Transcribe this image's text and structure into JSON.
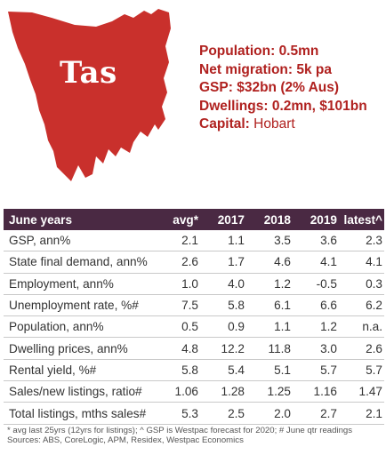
{
  "map": {
    "label": "Tas",
    "fill_color": "#c9302c"
  },
  "facts": [
    {
      "key": "Population:",
      "value": "0.5mn",
      "bold_value": true
    },
    {
      "key": "Net migration:",
      "value": "5k pa",
      "bold_value": true
    },
    {
      "key": "GSP:",
      "value": "$32bn (2% Aus)",
      "bold_value": true
    },
    {
      "key": "Dwellings:",
      "value": "0.2mn, $101bn",
      "bold_value": true
    },
    {
      "key": "Capital:",
      "value": "Hobart",
      "bold_value": false
    }
  ],
  "table": {
    "header_color": "#4a2943",
    "headers": [
      "June years",
      "avg*",
      "2017",
      "2018",
      "2019",
      "latest^"
    ],
    "rows": [
      [
        "GSP, ann%",
        "2.1",
        "1.1",
        "3.5",
        "3.6",
        "2.3"
      ],
      [
        "State final demand, ann%",
        "2.6",
        "1.7",
        "4.6",
        "4.1",
        "4.1"
      ],
      [
        "Employment, ann%",
        "1.0",
        "4.0",
        "1.2",
        "-0.5",
        "0.3"
      ],
      [
        "Unemployment rate, %#",
        "7.5",
        "5.8",
        "6.1",
        "6.6",
        "6.2"
      ],
      [
        "Population, ann%",
        "0.5",
        "0.9",
        "1.1",
        "1.2",
        "n.a."
      ],
      [
        "Dwelling prices, ann%",
        "4.8",
        "12.2",
        "11.8",
        "3.0",
        "2.6"
      ],
      [
        "Rental yield, %#",
        "5.8",
        "5.4",
        "5.1",
        "5.7",
        "5.7"
      ],
      [
        "Sales/new listings, ratio#",
        "1.06",
        "1.28",
        "1.25",
        "1.16",
        "1.47"
      ],
      [
        "Total listings, mths sales#",
        "5.3",
        "2.5",
        "2.0",
        "2.7",
        "2.1"
      ]
    ]
  },
  "notes": {
    "line1": "* avg last 25yrs (12yrs for listings); ^ GSP is Westpac forecast for 2020; # June qtr readings",
    "line2": "Sources: ABS, CoreLogic, APM, Residex, Westpac Economics"
  }
}
